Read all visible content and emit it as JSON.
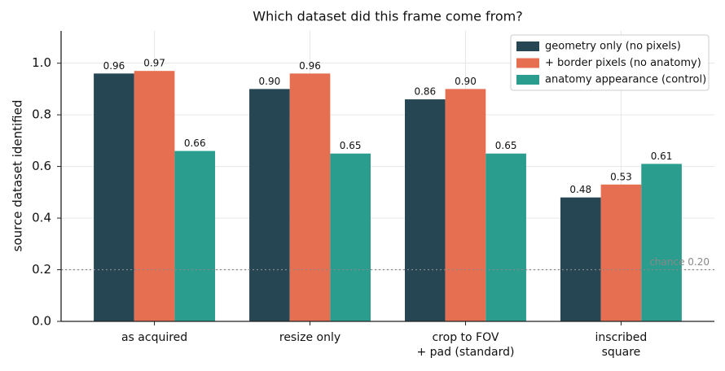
{
  "chart_data": {
    "type": "bar",
    "title": "Which dataset did this frame come from?",
    "y_label": "source dataset identified",
    "categories": [
      "as acquired",
      "resize only",
      "crop to FOV\n+ pad (standard)",
      "inscribed\nsquare"
    ],
    "series": [
      {
        "name": "geometry only (no pixels)",
        "color": "#264653",
        "values": [
          0.96,
          0.9,
          0.86,
          0.48
        ],
        "value_labels": [
          "0.96",
          "0.90",
          "0.86",
          "0.48"
        ]
      },
      {
        "name": "+ border pixels (no anatomy)",
        "color": "#e76f51",
        "values": [
          0.97,
          0.96,
          0.9,
          0.53
        ],
        "value_labels": [
          "0.97",
          "0.96",
          "0.90",
          "0.53"
        ]
      },
      {
        "name": "anatomy appearance (control)",
        "color": "#2a9d8f",
        "values": [
          0.66,
          0.65,
          0.65,
          0.61
        ],
        "value_labels": [
          "0.66",
          "0.65",
          "0.65",
          "0.61"
        ]
      }
    ],
    "ylim": [
      0,
      1.125
    ],
    "yticks": [
      {
        "value": 0,
        "label": "0.0"
      },
      {
        "value": 0.2,
        "label": "0.2"
      },
      {
        "value": 0.4,
        "label": "0.4"
      },
      {
        "value": 0.6,
        "label": "0.6"
      },
      {
        "value": 0.8,
        "label": "0.8"
      },
      {
        "value": 1,
        "label": "1.0"
      }
    ],
    "chance_line": {
      "value": 0.2,
      "label": "chance 0.20"
    },
    "grid": true,
    "legend": "upper right"
  }
}
